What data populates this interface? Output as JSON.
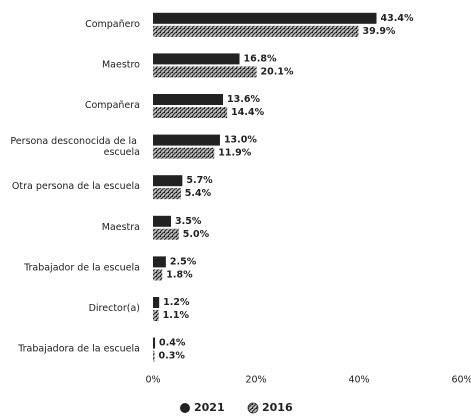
{
  "chart_data": {
    "type": "bar",
    "orientation": "horizontal",
    "categories": [
      "Compañero",
      "Maestro",
      "Compañera",
      "Persona desconocida de la escuela",
      "Otra persona de la escuela",
      "Maestra",
      "Trabajador de la escuela",
      "Director(a)",
      "Trabajadora de la escuela"
    ],
    "series": [
      {
        "name": "2021",
        "color": "#222222",
        "values": [
          43.4,
          16.8,
          13.6,
          13.0,
          5.7,
          3.5,
          2.5,
          1.2,
          0.4
        ],
        "value_labels": [
          "43.4%",
          "16.8%",
          "13.6%",
          "13.0%",
          "5.7%",
          "3.5%",
          "2.5%",
          "1.2%",
          "0.4%"
        ]
      },
      {
        "name": "2016",
        "color": "#888888",
        "values": [
          39.9,
          20.1,
          14.4,
          11.9,
          5.4,
          5.0,
          1.8,
          1.1,
          0.3
        ],
        "value_labels": [
          "39.9%",
          "20.1%",
          "14.4%",
          "11.9%",
          "5.4%",
          "5.0%",
          "1.8%",
          "1.1%",
          "0.3%"
        ]
      }
    ],
    "xlim": [
      0,
      60
    ],
    "xticks": [
      {
        "value": 0,
        "label": "0%"
      },
      {
        "value": 20,
        "label": "20%"
      },
      {
        "value": 40,
        "label": "40%"
      },
      {
        "value": 60,
        "label": "60%"
      }
    ],
    "legend": "bottom"
  }
}
